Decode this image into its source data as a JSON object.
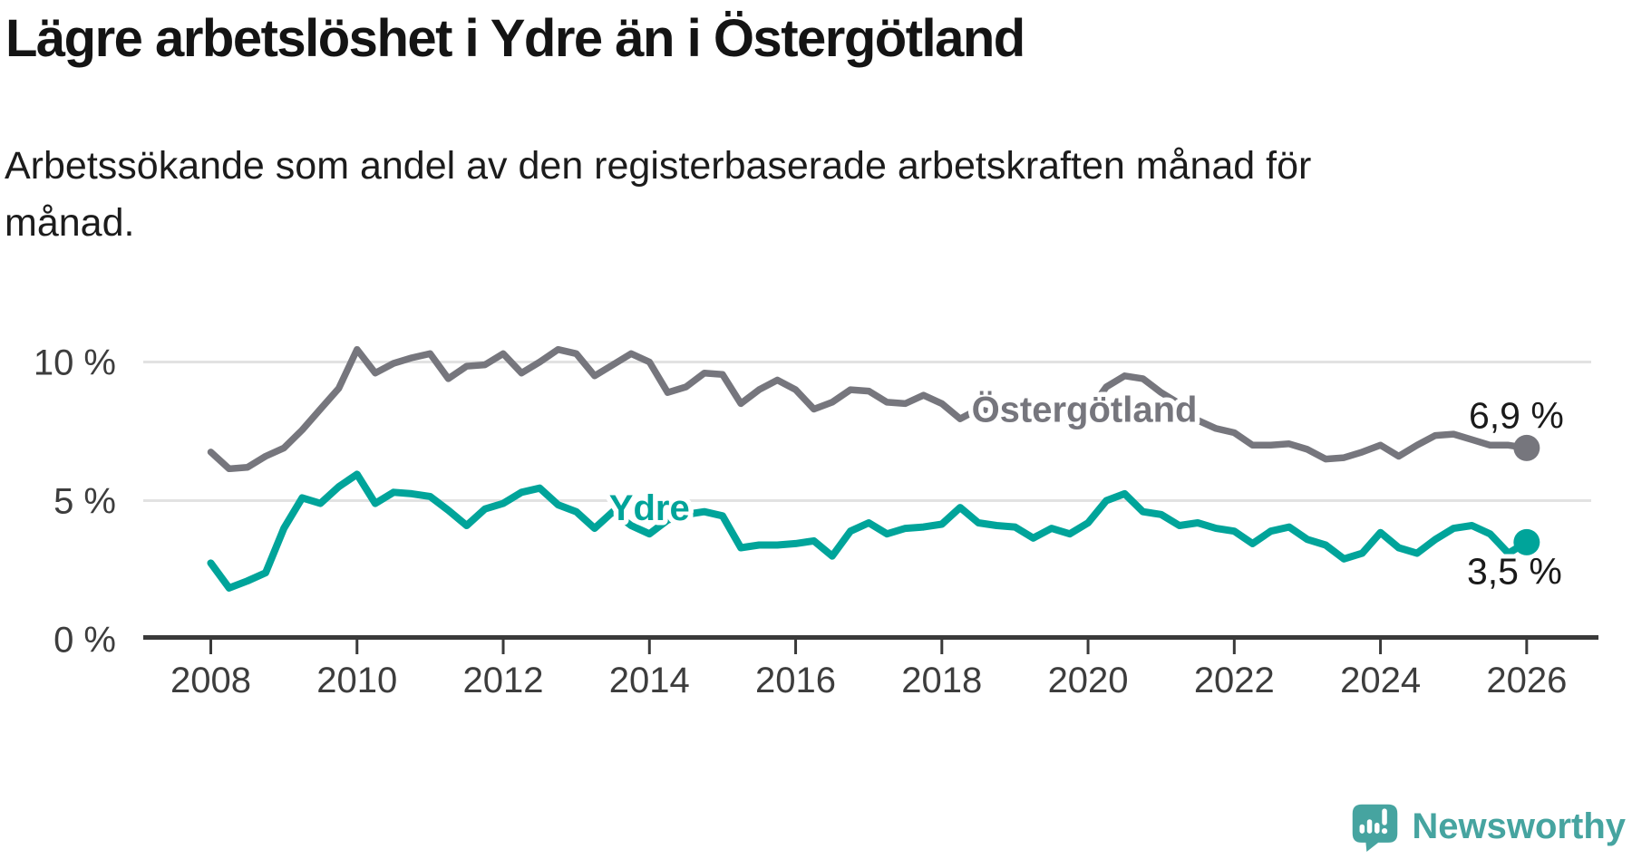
{
  "footer": {
    "brand": "Newsworthy",
    "logo_icon": "bar-chart-speech-bubble-icon"
  },
  "colors": {
    "background": "#ffffff",
    "grid": "#e2e2e2",
    "axis": "#3a3a3a",
    "tick_text": "#3d3d3d",
    "value_text": "#1a1a1a",
    "halo": "#ffffff",
    "ostergotland_gray": "#76767d",
    "ydre_teal": "#00a49a",
    "brand_teal": "#46a4a0"
  },
  "chart_data": {
    "type": "line",
    "title": "Lägre arbetslöshet i Ydre än i Östergötland",
    "subtitle": "Arbetssökande som andel av den registerbaserade arbetskraften månad för\nmånad.",
    "grid": "horizontal-only",
    "legend_position": "inline-labels-on-lines",
    "x0": 2008,
    "dx": 0.25,
    "x_axis": {
      "range": [
        2007.1,
        2027.0
      ],
      "ticks": [
        {
          "value": 2008,
          "label": "2008"
        },
        {
          "value": 2010,
          "label": "2010"
        },
        {
          "value": 2012,
          "label": "2012"
        },
        {
          "value": 2014,
          "label": "2014"
        },
        {
          "value": 2016,
          "label": "2016"
        },
        {
          "value": 2018,
          "label": "2018"
        },
        {
          "value": 2020,
          "label": "2020"
        },
        {
          "value": 2022,
          "label": "2022"
        },
        {
          "value": 2024,
          "label": "2024"
        },
        {
          "value": 2026,
          "label": "2026"
        }
      ]
    },
    "y_axis": {
      "range": [
        0,
        10.8
      ],
      "unit": "%",
      "gridline_values": [
        5,
        10
      ],
      "ticks": [
        {
          "value": 0,
          "label": "0 %"
        },
        {
          "value": 5,
          "label": "5 %"
        },
        {
          "value": 10,
          "label": "10 %"
        }
      ]
    },
    "series": [
      {
        "id": "ostergotland",
        "name": "Östergötland",
        "color": "#76767d",
        "stroke_width": 7.5,
        "end_label": "6,9 %",
        "end_value": 6.9,
        "end_label_dx": 41,
        "end_label_dy": -22,
        "label_x": 2019.95,
        "label_y": 8.3,
        "values": [
          6.75,
          6.15,
          6.2,
          6.6,
          6.9,
          7.55,
          8.3,
          9.05,
          10.45,
          9.6,
          9.95,
          10.15,
          10.3,
          9.4,
          9.85,
          9.9,
          10.3,
          9.6,
          10.0,
          10.45,
          10.3,
          9.5,
          9.9,
          10.3,
          10.0,
          8.9,
          9.1,
          9.6,
          9.55,
          8.5,
          9.0,
          9.35,
          9.0,
          8.3,
          8.55,
          9.0,
          8.95,
          8.55,
          8.5,
          8.8,
          8.5,
          7.95,
          8.3,
          8.15,
          8.0,
          7.9,
          7.95,
          8.0,
          8.2,
          9.1,
          9.5,
          9.4,
          8.9,
          8.5,
          7.9,
          7.6,
          7.45,
          7.0,
          7.0,
          7.05,
          6.85,
          6.5,
          6.55,
          6.75,
          7.0,
          6.6,
          7.0,
          7.35,
          7.4,
          7.2,
          7.0,
          7.0,
          6.9
        ]
      },
      {
        "id": "ydre",
        "name": "Ydre",
        "color": "#00a49a",
        "stroke_width": 8,
        "end_label": "3,5 %",
        "end_value": 3.5,
        "end_label_dx": 39,
        "end_label_dy": 46,
        "label_x": 2014.0,
        "label_y": 4.75,
        "values": [
          2.75,
          1.85,
          2.1,
          2.4,
          4.0,
          5.1,
          4.9,
          5.5,
          5.95,
          4.9,
          5.3,
          5.25,
          5.15,
          4.65,
          4.1,
          4.7,
          4.9,
          5.3,
          5.45,
          4.85,
          4.6,
          4.0,
          4.6,
          4.1,
          3.8,
          4.3,
          4.5,
          4.6,
          4.45,
          3.3,
          3.4,
          3.4,
          3.45,
          3.55,
          3.0,
          3.9,
          4.2,
          3.8,
          4.0,
          4.05,
          4.15,
          4.75,
          4.2,
          4.1,
          4.05,
          3.65,
          4.0,
          3.8,
          4.2,
          5.0,
          5.25,
          4.6,
          4.5,
          4.1,
          4.2,
          4.0,
          3.9,
          3.45,
          3.9,
          4.05,
          3.6,
          3.4,
          2.9,
          3.1,
          3.85,
          3.3,
          3.1,
          3.6,
          4.0,
          4.1,
          3.8,
          3.1,
          3.5
        ]
      }
    ]
  }
}
